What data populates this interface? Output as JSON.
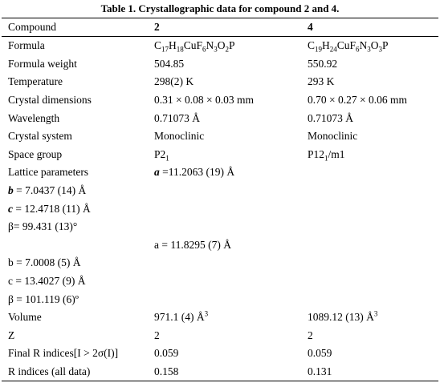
{
  "title": "Table 1. Crystallographic data for compound 2 and 4.",
  "table": {
    "header": [
      "Compound",
      "2",
      "4"
    ],
    "rows": [
      [
        "Formula",
        [
          "C",
          {
            "sub": "17"
          },
          "H",
          {
            "sub": "18"
          },
          "CuF",
          {
            "sub": "6"
          },
          "N",
          {
            "sub": "3"
          },
          "O",
          {
            "sub": "2"
          },
          "P"
        ],
        [
          "C",
          {
            "sub": "19"
          },
          "H",
          {
            "sub": "24"
          },
          "CuF",
          {
            "sub": "6"
          },
          "N",
          {
            "sub": "3"
          },
          "O",
          {
            "sub": "3"
          },
          "P"
        ]
      ],
      [
        "Formula weight",
        "504.85",
        "550.92"
      ],
      [
        "Temperature",
        "298(2) K",
        "293 K"
      ],
      [
        "Crystal dimensions",
        "0.31 × 0.08 × 0.03 mm",
        "0.70 × 0.27 × 0.06 mm"
      ],
      [
        "Wavelength",
        "0.71073 Å",
        "0.71073 Å"
      ],
      [
        "Crystal system",
        "Monoclinic",
        "Monoclinic"
      ],
      [
        "Space group",
        [
          "P2",
          {
            "sub": "1"
          }
        ],
        [
          "P12",
          {
            "sub": "1"
          },
          "/m1"
        ]
      ],
      [
        "Lattice parameters",
        [
          {
            "em": "a"
          },
          " =11.2063 (19) Å"
        ],
        null
      ],
      [
        [
          {
            "em": "b"
          },
          " = 7.0437 (14) Å"
        ],
        null,
        null
      ],
      [
        [
          {
            "em": "c"
          },
          " = 12.4718 (11) Å"
        ],
        null,
        null
      ],
      [
        "β= 99.431 (13)°",
        null,
        null
      ],
      [
        null,
        "a = 11.8295 (7) Å",
        null
      ],
      [
        "b = 7.0008 (5) Å",
        null,
        null
      ],
      [
        "c = 13.4027 (9) Å",
        null,
        null
      ],
      [
        "β = 101.119 (6)º",
        null,
        null
      ],
      [
        "Volume",
        [
          "971.1 (4) Å",
          {
            "sup": "3"
          }
        ],
        [
          "1089.12 (13) Å",
          {
            "sup": "3"
          }
        ]
      ],
      [
        "Z",
        "2",
        "2"
      ],
      [
        "Final R indices[I > 2σ(I)]",
        "0.059",
        "0.059"
      ],
      [
        "R indices (all data)",
        "0.158",
        "0.131"
      ]
    ]
  }
}
